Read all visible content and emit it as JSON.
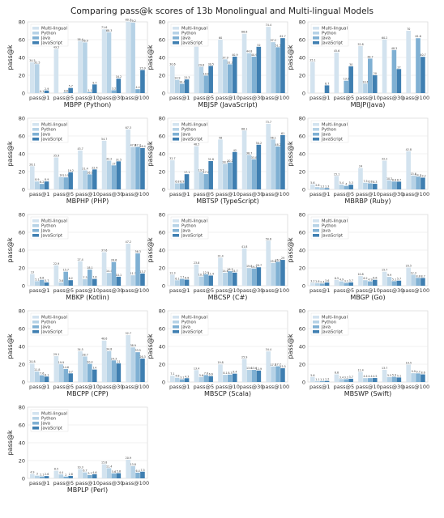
{
  "suptitle": "Comparing pass@k scores of 13b Monolingual and Multi-lingual Models",
  "colors": {
    "Multi-lingual": "#d3e3ef",
    "Python": "#b6d2e6",
    "Java": "#7fb0d3",
    "JavaScript": "#3f7fb1"
  },
  "chart_data": [
    {
      "type": "bar",
      "title": "MBPP (Python)",
      "ylabel": "pass@k",
      "ylim": [
        0,
        80
      ],
      "categories": [
        "pass@1",
        "pass@5",
        "pass@10",
        "pass@30",
        "pass@100"
      ],
      "series": [
        {
          "name": "Multi-lingual",
          "values": [
            34.5,
            49.5,
            58.4,
            71.6,
            80.3
          ]
        },
        {
          "name": "Python",
          "values": [
            32.5,
            null,
            56.9,
            68.3,
            79.2
          ]
        },
        {
          "name": "Java",
          "values": [
            0.1,
            0.6,
            1.1,
            3.2,
            4.4
          ]
        },
        {
          "name": "JavaScript",
          "values": [
            2.9,
            5.7,
            9.7,
            16.2,
            25.9
          ]
        }
      ]
    },
    {
      "type": "bar",
      "title": "MBJSP (JavaScript)",
      "ylabel": "pass@k",
      "ylim": [
        0,
        80
      ],
      "categories": [
        "pass@1",
        "pass@5",
        "pass@10",
        "pass@30",
        "pass@100"
      ],
      "series": [
        {
          "name": "Multi-lingual",
          "values": [
            30.6,
            52.1,
            60.0,
            66.6,
            74.4
          ]
        },
        {
          "name": "Python",
          "values": [
            14.9,
            29.6,
            37.9,
            44.8,
            57.2
          ]
        },
        {
          "name": "Java",
          "values": [
            10.4,
            19.6,
            32.3,
            40.9,
            51.5
          ]
        },
        {
          "name": "JavaScript",
          "values": [
            15.3,
            30.5,
            40.9,
            52.0,
            61.7
          ]
        }
      ]
    },
    {
      "type": "bar",
      "title": "MBJP(Java)",
      "ylabel": "pass@k",
      "ylim": [
        0,
        80
      ],
      "categories": [
        "pass@1",
        "pass@5",
        "pass@10",
        "pass@30",
        "pass@100"
      ],
      "series": [
        {
          "name": "Multi-lingual",
          "values": [
            35.1,
            45.6,
            52.8,
            60.2,
            70.0
          ]
        },
        {
          "name": "Python",
          "values": [
            null,
            null,
            10.6,
            null,
            null
          ]
        },
        {
          "name": "Java",
          "values": [
            null,
            13.9,
            38.7,
            48.3,
            61.6
          ]
        },
        {
          "name": "JavaScript",
          "values": [
            8.7,
            30.0,
            20.0,
            27.0,
            40.7
          ]
        }
      ]
    },
    {
      "type": "bar",
      "title": "MBPHP (PHP)",
      "ylabel": "pass@k",
      "ylim": [
        0,
        80
      ],
      "categories": [
        "pass@1",
        "pass@5",
        "pass@10",
        "pass@30",
        "pass@100"
      ],
      "series": [
        {
          "name": "Multi-lingual",
          "values": [
            26.1,
            35.9,
            43.7,
            54.7,
            67.3
          ]
        },
        {
          "name": "Python",
          "values": [
            8.9,
            14.0,
            21.4,
            32.2,
            47.6
          ]
        },
        {
          "name": "Java",
          "values": [
            6.2,
            13.5,
            16.9,
            27.0,
            47.7
          ]
        },
        {
          "name": "JavaScript",
          "values": [
            8.9,
            19.2,
            22.4,
            31.5,
            46.4
          ]
        }
      ]
    },
    {
      "type": "bar",
      "title": "MBTSP (TypeScript)",
      "ylabel": "pass@k",
      "ylim": [
        0,
        80
      ],
      "categories": [
        "pass@1",
        "pass@5",
        "pass@10",
        "pass@30",
        "pass@100"
      ],
      "series": [
        {
          "name": "Multi-lingual",
          "values": [
            32.7,
            48.5,
            56.0,
            66.1,
            73.7
          ]
        },
        {
          "name": "Python",
          "values": [
            6.8,
            19.5,
            28.7,
            38.7,
            56.1
          ]
        },
        {
          "name": "Java",
          "values": [
            6.9,
            17.2,
            30.2,
            33.8,
            48.2
          ]
        },
        {
          "name": "JavaScript",
          "values": [
            17.1,
            31.8,
            42.0,
            50.2,
            61.0
          ]
        }
      ]
    },
    {
      "type": "bar",
      "title": "MBRBP (Ruby)",
      "ylabel": "pass@k",
      "ylim": [
        0,
        80
      ],
      "categories": [
        "pass@1",
        "pass@5",
        "pass@10",
        "pass@30",
        "pass@100"
      ],
      "series": [
        {
          "name": "Multi-lingual",
          "values": [
            5.6,
            15.1,
            24.0,
            32.2,
            42.8
          ]
        },
        {
          "name": "Python",
          "values": [
            2.6,
            5.4,
            7.5,
            10.2,
            15.6
          ]
        },
        {
          "name": "Java",
          "values": [
            1.2,
            4.0,
            6.8,
            8.8,
            14.3
          ]
        },
        {
          "name": "JavaScript",
          "values": [
            1.3,
            5.3,
            6.3,
            8.7,
            13.2
          ]
        }
      ]
    },
    {
      "type": "bar",
      "title": "MBKP (Kotlin)",
      "ylabel": "pass@k",
      "ylim": [
        0,
        80
      ],
      "categories": [
        "pass@1",
        "pass@5",
        "pass@10",
        "pass@30",
        "pass@100"
      ],
      "series": [
        {
          "name": "Multi-lingual",
          "values": [
            13.0,
            22.9,
            27.4,
            37.6,
            47.2
          ]
        },
        {
          "name": "Python",
          "values": [
            5.1,
            3.6,
            7.3,
            14.4,
            11.7
          ]
        },
        {
          "name": "Java",
          "values": [
            6.6,
            15.7,
            18.1,
            26.6,
            36.3
          ]
        },
        {
          "name": "JavaScript",
          "values": [
            3.7,
            6.2,
            7.6,
            10.1,
            13.7
          ]
        }
      ]
    },
    {
      "type": "bar",
      "title": "MBCSP (C#)",
      "ylabel": "pass@k",
      "ylim": [
        0,
        80
      ],
      "categories": [
        "pass@1",
        "pass@5",
        "pass@10",
        "pass@30",
        "pass@100"
      ],
      "series": [
        {
          "name": "Multi-lingual",
          "values": [
            12.3,
            23.8,
            31.4,
            41.8,
            50.6
          ]
        },
        {
          "name": "Python",
          "values": [
            6.1,
            10.3,
            14.6,
            19.8,
            25.6
          ]
        },
        {
          "name": "Java",
          "values": [
            7.7,
            12.9,
            16.3,
            19.3,
            26.9
          ]
        },
        {
          "name": "JavaScript",
          "values": [
            6.8,
            11.4,
            14.7,
            20.7,
            29.0
          ]
        }
      ]
    },
    {
      "type": "bar",
      "title": "MBGP (Go)",
      "ylabel": "pass@k",
      "ylim": [
        0,
        80
      ],
      "categories": [
        "pass@1",
        "pass@5",
        "pass@10",
        "pass@30",
        "pass@100"
      ],
      "series": [
        {
          "name": "Multi-lingual",
          "values": [
            3.2,
            6.5,
            10.8,
            15.7,
            20.5
          ]
        },
        {
          "name": "Python",
          "values": [
            2.8,
            4.9,
            6.2,
            9.9,
            12.3
          ]
        },
        {
          "name": "Java",
          "values": [
            2.4,
            3.1,
            4.9,
            5.1,
            8.8
          ]
        },
        {
          "name": "JavaScript",
          "values": [
            3.6,
            3.7,
            6.6,
            5.7,
            8.7
          ]
        }
      ]
    },
    {
      "type": "bar",
      "title": "MBCPP (CPP)",
      "ylabel": "pass@k",
      "ylim": [
        0,
        80
      ],
      "categories": [
        "pass@1",
        "pass@5",
        "pass@10",
        "pass@30",
        "pass@100"
      ],
      "series": [
        {
          "name": "Multi-lingual",
          "values": [
            20.8,
            29.1,
            34.5,
            46.6,
            52.7
          ]
        },
        {
          "name": "Python",
          "values": [
            11.8,
            19.9,
            28.7,
            34.8,
            38.9
          ]
        },
        {
          "name": "Java",
          "values": [
            7.6,
            14.6,
            20.4,
            24.3,
            33.5
          ]
        },
        {
          "name": "JavaScript",
          "values": [
            6.1,
            9.7,
            14.0,
            21.0,
            26.3
          ]
        }
      ]
    },
    {
      "type": "bar",
      "title": "MBSCP (Scala)",
      "ylabel": "pass@k",
      "ylim": [
        0,
        80
      ],
      "categories": [
        "pass@1",
        "pass@5",
        "pass@10",
        "pass@30",
        "pass@100"
      ],
      "series": [
        {
          "name": "Multi-lingual",
          "values": [
            7.1,
            13.4,
            19.8,
            25.9,
            34.4
          ]
        },
        {
          "name": "Python",
          "values": [
            4.8,
            5.6,
            8.1,
            13.6,
            17.5
          ]
        },
        {
          "name": "Java",
          "values": [
            3.1,
            7.8,
            8.3,
            13.6,
            17.7
          ]
        },
        {
          "name": "JavaScript",
          "values": [
            4.3,
            6.6,
            9.4,
            12.9,
            15.5
          ]
        }
      ]
    },
    {
      "type": "bar",
      "title": "MBSWP (Swift)",
      "ylabel": "pass@k",
      "ylim": [
        0,
        80
      ],
      "categories": [
        "pass@1",
        "pass@5",
        "pass@10",
        "pass@30",
        "pass@100"
      ],
      "series": [
        {
          "name": "Multi-lingual",
          "values": [
            5.6,
            8.6,
            11.4,
            13.7,
            19.5
          ]
        },
        {
          "name": "Python",
          "values": [
            1.1,
            3.4,
            4.4,
            5.5,
            9.9
          ]
        },
        {
          "name": "Java",
          "values": [
            1.1,
            3.2,
            4.4,
            5.9,
            9.7
          ]
        },
        {
          "name": "JavaScript",
          "values": [
            1.2,
            3.7,
            4.5,
            5.1,
            8.6
          ]
        }
      ]
    },
    {
      "type": "bar",
      "title": "MBPLP (Perl)",
      "ylabel": "pass@k",
      "ylim": [
        0,
        80
      ],
      "categories": [
        "pass@1",
        "pass@5",
        "pass@10",
        "pass@30",
        "pass@100"
      ],
      "series": [
        {
          "name": "Multi-lingual",
          "values": [
            4.9,
            8.5,
            10.3,
            15.8,
            20.9
          ]
        },
        {
          "name": "Python",
          "values": [
            3.0,
            4.4,
            6.7,
            11.4,
            13.8
          ]
        },
        {
          "name": "Java",
          "values": [
            2.1,
            2.0,
            3.7,
            5.6,
            6.4
          ]
        },
        {
          "name": "JavaScript",
          "values": [
            2.6,
            2.8,
            4.6,
            5.8,
            7.5
          ]
        }
      ]
    }
  ]
}
